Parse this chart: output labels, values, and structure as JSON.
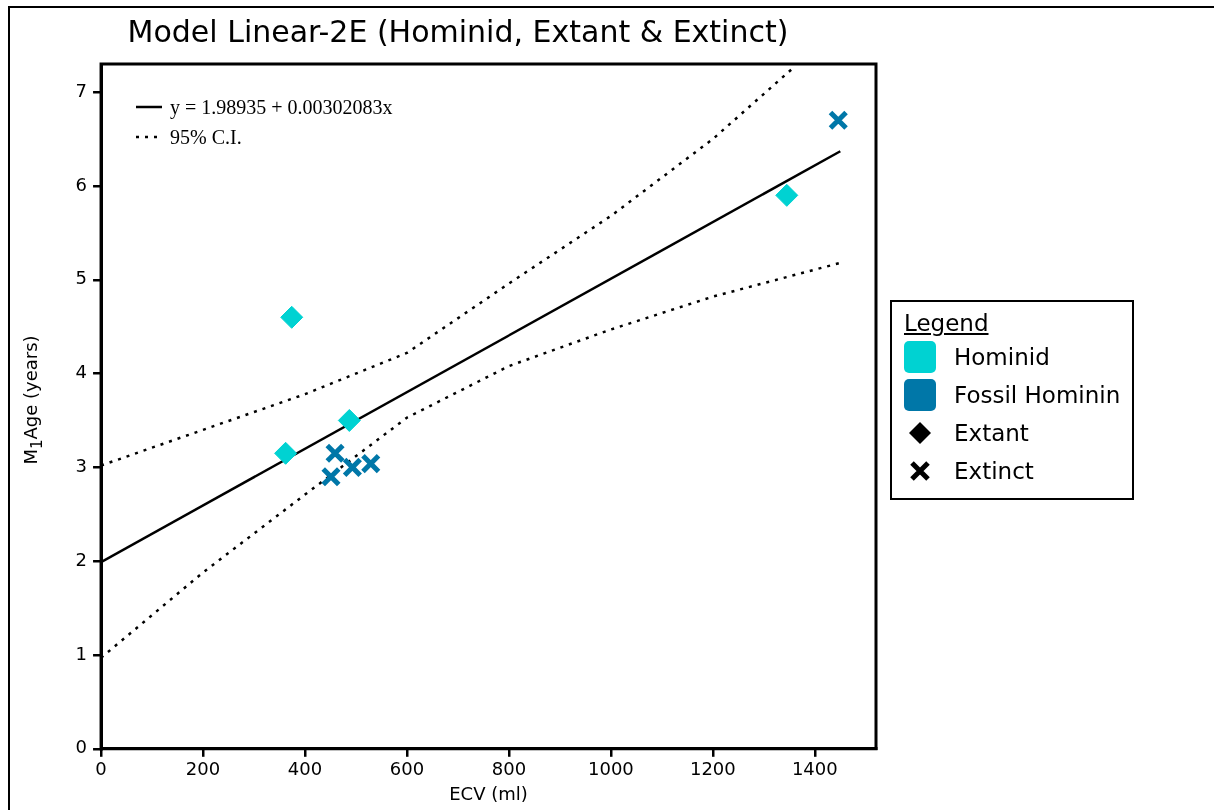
{
  "chart_data": {
    "type": "scatter",
    "title": "Model Linear-2E (Hominid, Extant & Extinct)",
    "xlabel": "ECV (ml)",
    "ylabel": "M$_{1}$Age (years)",
    "legend_title": "Legend",
    "xlim": [
      0,
      1520
    ],
    "xticks": [
      0,
      200,
      400,
      600,
      800,
      1000,
      1200,
      1400
    ],
    "ylim": [
      0,
      7.3
    ],
    "yticks": [
      0,
      1,
      2,
      3,
      4,
      5,
      6,
      7
    ],
    "grid": false,
    "legend": "right",
    "series": [
      {
        "name": "Hominid",
        "type": "scatter",
        "marker": "diamond",
        "color": "#00d2d2",
        "x": [
          374,
          362,
          487,
          1345
        ],
        "values": [
          4.6,
          3.15,
          3.5,
          5.9
        ]
      },
      {
        "name": "Fossil Hominin",
        "type": "scatter",
        "marker": "cross",
        "color": "#0077a8",
        "x": [
          1446,
          459,
          451,
          493,
          529
        ],
        "values": [
          6.7,
          3.15,
          2.9,
          3.0,
          3.04
        ]
      },
      {
        "name": "y = 1.98935 + 0.00302083x",
        "type": "line",
        "line_style": "solid",
        "marker": "none",
        "color": "#000000",
        "x": [
          0,
          1450
        ],
        "values": [
          1.99,
          6.37
        ]
      },
      {
        "name": "95% C.I.",
        "type": "line",
        "line_style": "dotted",
        "marker": "none",
        "color": "#000000",
        "x": [
          0,
          200,
          400,
          600,
          800,
          1000,
          1200,
          1360
        ],
        "values": [
          3.02,
          3.4,
          3.78,
          4.22,
          4.96,
          5.68,
          6.5,
          7.27
        ]
      },
      {
        "type": "line",
        "line_style": "dotted",
        "marker": "none",
        "color": "#000000",
        "x": [
          0,
          200,
          400,
          600,
          800,
          1000,
          1200,
          1450
        ],
        "values": [
          0.97,
          1.88,
          2.71,
          3.53,
          4.08,
          4.47,
          4.82,
          5.18
        ]
      }
    ],
    "annotations": [
      "Extant",
      "Extinct"
    ]
  }
}
